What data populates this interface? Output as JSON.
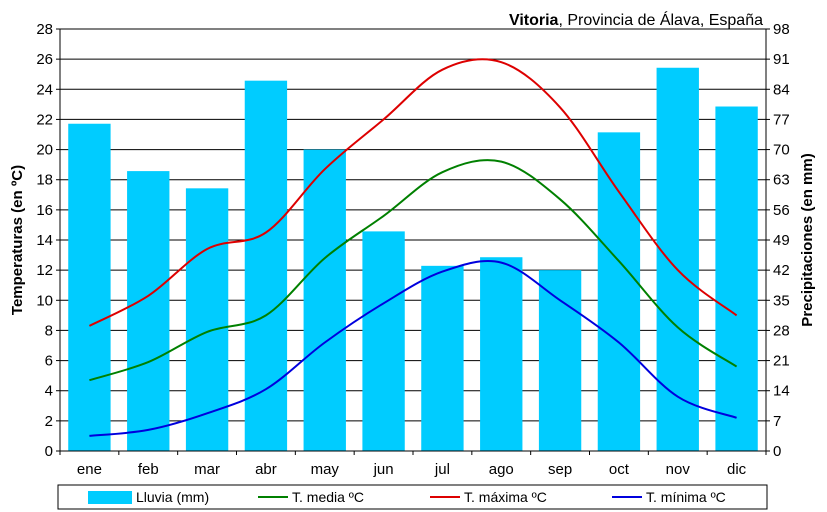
{
  "chart_data": {
    "type": "bar",
    "title_bold": "Vitoria",
    "title_rest": ", Provincia de Álava, España",
    "categories": [
      "ene",
      "feb",
      "mar",
      "abr",
      "may",
      "jun",
      "jul",
      "ago",
      "sep",
      "oct",
      "nov",
      "dic"
    ],
    "ylabel_left": "Temperaturas (en ºC)",
    "ylabel_right": "Precipitaciones (en mm)",
    "ylim_left": [
      0,
      28
    ],
    "ylim_right": [
      0,
      98
    ],
    "yticks_left": [
      "0",
      "2",
      "4",
      "6",
      "8",
      "10",
      "12",
      "14",
      "16",
      "18",
      "20",
      "22",
      "24",
      "26",
      "28"
    ],
    "yticks_right": [
      "0",
      "7",
      "14",
      "21",
      "28",
      "35",
      "42",
      "49",
      "56",
      "63",
      "70",
      "77",
      "84",
      "91",
      "98"
    ],
    "grid": true,
    "legend_position": "bottom",
    "series": [
      {
        "name": "Lluvia (mm)",
        "kind": "bar",
        "axis": "right",
        "color": "#00ccff",
        "values": [
          76,
          65,
          61,
          86,
          70,
          51,
          43,
          45,
          42,
          74,
          89,
          80
        ]
      },
      {
        "name": "T. media ºC",
        "kind": "line",
        "axis": "left",
        "color": "#008000",
        "values": [
          4.7,
          5.9,
          7.9,
          9.0,
          12.8,
          15.6,
          18.5,
          19.2,
          16.7,
          12.6,
          8.2,
          5.6
        ]
      },
      {
        "name": "T. máxima ºC",
        "kind": "line",
        "axis": "left",
        "color": "#dd0000",
        "values": [
          8.3,
          10.3,
          13.4,
          14.5,
          18.7,
          22.0,
          25.3,
          25.8,
          22.8,
          17.2,
          12.0,
          9.0
        ]
      },
      {
        "name": "T. mínima ºC",
        "kind": "line",
        "axis": "left",
        "color": "#0000dd",
        "values": [
          1.0,
          1.4,
          2.5,
          4.1,
          7.2,
          9.8,
          11.9,
          12.5,
          10.0,
          7.2,
          3.6,
          2.2
        ]
      }
    ]
  }
}
